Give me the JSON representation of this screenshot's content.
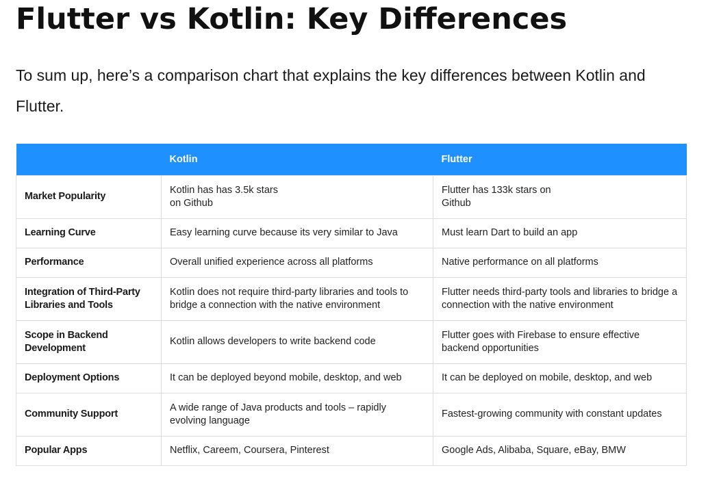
{
  "heading": "Flutter vs Kotlin: Key Differences",
  "intro": "To sum up, here’s a comparison chart that explains the key differences between Kotlin and Flutter.",
  "table": {
    "headers": [
      "",
      "Kotlin",
      "Flutter"
    ],
    "rows": [
      {
        "feature": "Market Popularity",
        "kotlin": "Kotlin has has 3.5k stars\non Github",
        "flutter": "Flutter has 133k stars on\nGithub"
      },
      {
        "feature": "Learning Curve",
        "kotlin": "Easy learning curve because its very similar to Java",
        "flutter": "Must learn Dart to build an app"
      },
      {
        "feature": "Performance",
        "kotlin": "Overall unified experience across all platforms",
        "flutter": "Native performance on all platforms"
      },
      {
        "feature": "Integration of Third-Party Libraries and Tools",
        "kotlin": "Kotlin does not require third-party libraries and tools to bridge a connection with the native environment",
        "flutter": "Flutter needs third-party tools and libraries to bridge a connection with the native environment"
      },
      {
        "feature": "Scope in Backend Development",
        "kotlin": "Kotlin allows developers to write backend code",
        "flutter": "Flutter goes with Firebase to ensure effective backend opportunities"
      },
      {
        "feature": "Deployment Options",
        "kotlin": "It can be deployed beyond mobile, desktop, and web",
        "flutter": "It can be deployed on mobile, desktop, and web"
      },
      {
        "feature": "Community Support",
        "kotlin": "A wide range of Java products and tools – rapidly evolving language",
        "flutter": "Fastest-growing community with constant updates"
      },
      {
        "feature": "Popular Apps",
        "kotlin": "Netflix, Careem, Coursera, Pinterest",
        "flutter": "Google Ads, Alibaba, Square, eBay, BMW"
      }
    ]
  },
  "colors": {
    "header_bg": "#1e90ff",
    "border": "#dcdcdc"
  }
}
